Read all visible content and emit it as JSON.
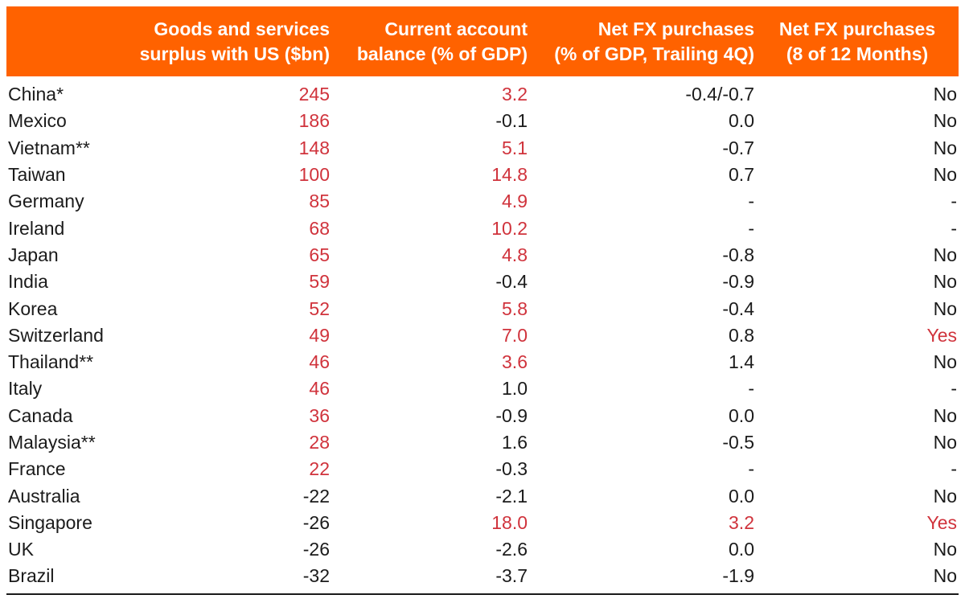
{
  "chart_data": {
    "type": "table",
    "title": "",
    "columns": [
      "",
      "Goods and services surplus with US ($bn)",
      "Current account balance (% of GDP)",
      "Net FX purchases (% of GDP, Trailing 4Q)",
      "Net FX purchases (8 of 12 Months)"
    ],
    "rows": [
      [
        "China*",
        "245",
        "3.2",
        "-0.4/-0.7",
        "No"
      ],
      [
        "Mexico",
        "186",
        "-0.1",
        "0.0",
        "No"
      ],
      [
        "Vietnam**",
        "148",
        "5.1",
        "-0.7",
        "No"
      ],
      [
        "Taiwan",
        "100",
        "14.8",
        "0.7",
        "No"
      ],
      [
        "Germany",
        "85",
        "4.9",
        "-",
        "-"
      ],
      [
        "Ireland",
        "68",
        "10.2",
        "-",
        "-"
      ],
      [
        "Japan",
        "65",
        "4.8",
        "-0.8",
        "No"
      ],
      [
        "India",
        "59",
        "-0.4",
        "-0.9",
        "No"
      ],
      [
        "Korea",
        "52",
        "5.8",
        "-0.4",
        "No"
      ],
      [
        "Switzerland",
        "49",
        "7.0",
        "0.8",
        "Yes"
      ],
      [
        "Thailand**",
        "46",
        "3.6",
        "1.4",
        "No"
      ],
      [
        "Italy",
        "46",
        "1.0",
        "-",
        "-"
      ],
      [
        "Canada",
        "36",
        "-0.9",
        "0.0",
        "No"
      ],
      [
        "Malaysia**",
        "28",
        "1.6",
        "-0.5",
        "No"
      ],
      [
        "France",
        "22",
        "-0.3",
        "-",
        "-"
      ],
      [
        "Australia",
        "-22",
        "-2.1",
        "0.0",
        "No"
      ],
      [
        "Singapore",
        "-26",
        "18.0",
        "3.2",
        "Yes"
      ],
      [
        "UK",
        "-26",
        "-2.6",
        "0.0",
        "No"
      ],
      [
        "Brazil",
        "-32",
        "-3.7",
        "-1.9",
        "No"
      ]
    ]
  },
  "table": {
    "headers": [
      {
        "label": "Goods and services\nsurplus with US ($bn)"
      },
      {
        "label": "Current account\nbalance (% of GDP)"
      },
      {
        "label": "Net FX purchases\n(% of GDP, Trailing 4Q)"
      },
      {
        "label": "Net FX purchases\n(8 of 12 Months)"
      }
    ],
    "rows": [
      {
        "country": "China*",
        "cells": [
          {
            "v": "245",
            "red": true
          },
          {
            "v": "3.2",
            "red": true
          },
          {
            "v": "-0.4/-0.7",
            "red": false
          },
          {
            "v": "No",
            "red": false
          }
        ]
      },
      {
        "country": "Mexico",
        "cells": [
          {
            "v": "186",
            "red": true
          },
          {
            "v": "-0.1",
            "red": false
          },
          {
            "v": "0.0",
            "red": false
          },
          {
            "v": "No",
            "red": false
          }
        ]
      },
      {
        "country": "Vietnam**",
        "cells": [
          {
            "v": "148",
            "red": true
          },
          {
            "v": "5.1",
            "red": true
          },
          {
            "v": "-0.7",
            "red": false
          },
          {
            "v": "No",
            "red": false
          }
        ]
      },
      {
        "country": "Taiwan",
        "cells": [
          {
            "v": "100",
            "red": true
          },
          {
            "v": "14.8",
            "red": true
          },
          {
            "v": "0.7",
            "red": false
          },
          {
            "v": "No",
            "red": false
          }
        ]
      },
      {
        "country": "Germany",
        "cells": [
          {
            "v": "85",
            "red": true
          },
          {
            "v": "4.9",
            "red": true
          },
          {
            "v": "-",
            "red": false
          },
          {
            "v": "-",
            "red": false
          }
        ]
      },
      {
        "country": "Ireland",
        "cells": [
          {
            "v": "68",
            "red": true
          },
          {
            "v": "10.2",
            "red": true
          },
          {
            "v": "-",
            "red": false
          },
          {
            "v": "-",
            "red": false
          }
        ]
      },
      {
        "country": "Japan",
        "cells": [
          {
            "v": "65",
            "red": true
          },
          {
            "v": "4.8",
            "red": true
          },
          {
            "v": "-0.8",
            "red": false
          },
          {
            "v": "No",
            "red": false
          }
        ]
      },
      {
        "country": "India",
        "cells": [
          {
            "v": "59",
            "red": true
          },
          {
            "v": "-0.4",
            "red": false
          },
          {
            "v": "-0.9",
            "red": false
          },
          {
            "v": "No",
            "red": false
          }
        ]
      },
      {
        "country": "Korea",
        "cells": [
          {
            "v": "52",
            "red": true
          },
          {
            "v": "5.8",
            "red": true
          },
          {
            "v": "-0.4",
            "red": false
          },
          {
            "v": "No",
            "red": false
          }
        ]
      },
      {
        "country": "Switzerland",
        "cells": [
          {
            "v": "49",
            "red": true
          },
          {
            "v": "7.0",
            "red": true
          },
          {
            "v": "0.8",
            "red": false
          },
          {
            "v": "Yes",
            "red": true
          }
        ]
      },
      {
        "country": "Thailand**",
        "cells": [
          {
            "v": "46",
            "red": true
          },
          {
            "v": "3.6",
            "red": true
          },
          {
            "v": "1.4",
            "red": false
          },
          {
            "v": "No",
            "red": false
          }
        ]
      },
      {
        "country": "Italy",
        "cells": [
          {
            "v": "46",
            "red": true
          },
          {
            "v": "1.0",
            "red": false
          },
          {
            "v": "-",
            "red": false
          },
          {
            "v": "-",
            "red": false
          }
        ]
      },
      {
        "country": "Canada",
        "cells": [
          {
            "v": "36",
            "red": true
          },
          {
            "v": "-0.9",
            "red": false
          },
          {
            "v": "0.0",
            "red": false
          },
          {
            "v": "No",
            "red": false
          }
        ]
      },
      {
        "country": "Malaysia**",
        "cells": [
          {
            "v": "28",
            "red": true
          },
          {
            "v": "1.6",
            "red": false
          },
          {
            "v": "-0.5",
            "red": false
          },
          {
            "v": "No",
            "red": false
          }
        ]
      },
      {
        "country": "France",
        "cells": [
          {
            "v": "22",
            "red": true
          },
          {
            "v": "-0.3",
            "red": false
          },
          {
            "v": "-",
            "red": false
          },
          {
            "v": "-",
            "red": false
          }
        ]
      },
      {
        "country": "Australia",
        "cells": [
          {
            "v": "-22",
            "red": false
          },
          {
            "v": "-2.1",
            "red": false
          },
          {
            "v": "0.0",
            "red": false
          },
          {
            "v": "No",
            "red": false
          }
        ]
      },
      {
        "country": "Singapore",
        "cells": [
          {
            "v": "-26",
            "red": false
          },
          {
            "v": "18.0",
            "red": true
          },
          {
            "v": "3.2",
            "red": true
          },
          {
            "v": "Yes",
            "red": true
          }
        ]
      },
      {
        "country": "UK",
        "cells": [
          {
            "v": "-26",
            "red": false
          },
          {
            "v": "-2.6",
            "red": false
          },
          {
            "v": "0.0",
            "red": false
          },
          {
            "v": "No",
            "red": false
          }
        ]
      },
      {
        "country": "Brazil",
        "cells": [
          {
            "v": "-32",
            "red": false
          },
          {
            "v": "-3.7",
            "red": false
          },
          {
            "v": "-1.9",
            "red": false
          },
          {
            "v": "No",
            "red": false
          }
        ]
      }
    ]
  },
  "colors": {
    "header_bg": "#FF6200",
    "header_text": "#FFFFFF",
    "highlight_red": "#D0333C",
    "body_text": "#1B1B1B"
  }
}
